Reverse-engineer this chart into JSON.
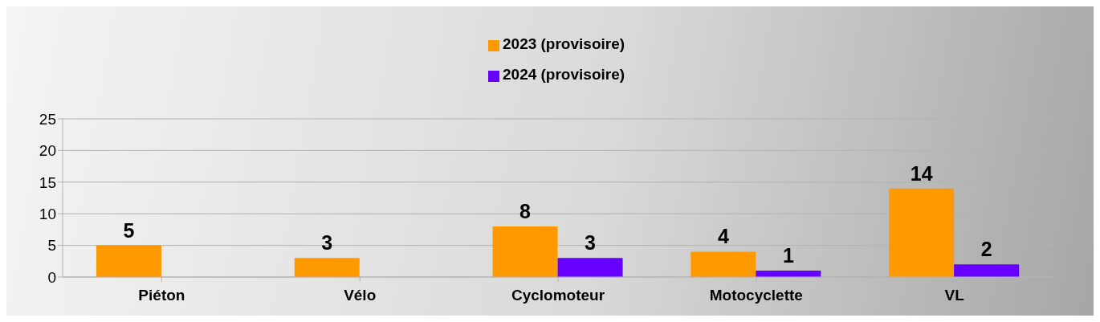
{
  "chart_data": {
    "type": "bar",
    "categories": [
      "Piéton",
      "Vélo",
      "Cyclomoteur",
      "Motocyclette",
      "VL"
    ],
    "series": [
      {
        "name": "2023 (provisoire)",
        "color": "#ff9900",
        "values": [
          5,
          3,
          8,
          4,
          14
        ]
      },
      {
        "name": "2024 (provisoire)",
        "color": "#6600ff",
        "values": [
          null,
          null,
          3,
          1,
          2
        ]
      }
    ],
    "ylim": [
      0,
      25
    ],
    "yticks": [
      0,
      5,
      10,
      15,
      20,
      25
    ],
    "grid": "y",
    "legend": "top",
    "data_labels": true
  }
}
